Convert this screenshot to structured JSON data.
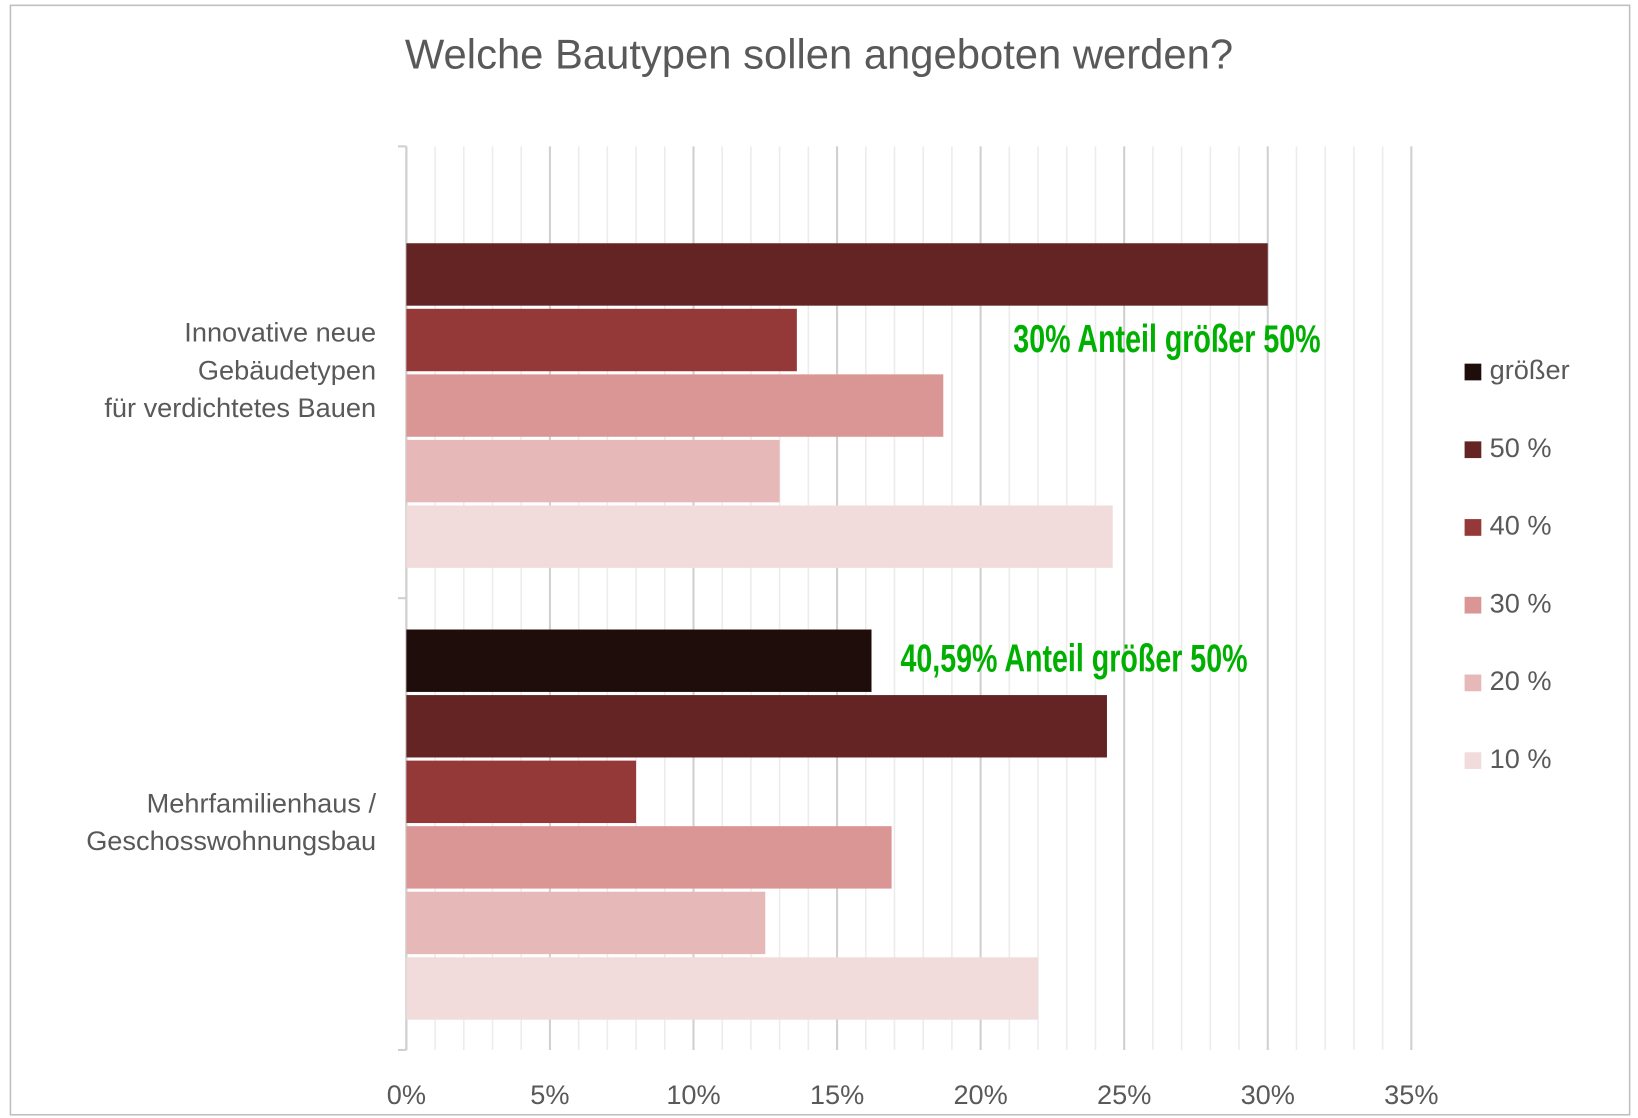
{
  "chart_data": {
    "type": "hbar",
    "title": "Welche Bautypen sollen angeboten werden?",
    "categories": [
      [
        "Innovative neue",
        "Gebäudetypen",
        "für verdichtetes Bauen"
      ],
      [
        "Mehrfamilienhaus /",
        "Geschosswohnungsbau"
      ]
    ],
    "series": [
      {
        "name": "größer",
        "color": "#1f0d0b",
        "values": [
          0,
          16.2
        ]
      },
      {
        "name": "50 %",
        "color": "#642424",
        "values": [
          30,
          24.4
        ]
      },
      {
        "name": "40 %",
        "color": "#953838",
        "values": [
          13.6,
          8
        ]
      },
      {
        "name": "30 %",
        "color": "#d99694",
        "values": [
          18.7,
          16.9
        ]
      },
      {
        "name": "20 %",
        "color": "#e6b9b8",
        "values": [
          13,
          12.5
        ]
      },
      {
        "name": "10 %",
        "color": "#f2dcdb",
        "values": [
          24.6,
          22
        ]
      }
    ],
    "xlim": [
      0,
      35
    ],
    "xticks": [
      {
        "value": 0,
        "label": "0%"
      },
      {
        "value": 5,
        "label": "5%"
      },
      {
        "value": 10,
        "label": "10%"
      },
      {
        "value": 15,
        "label": "15%"
      },
      {
        "value": 20,
        "label": "20%"
      },
      {
        "value": 25,
        "label": "25%"
      },
      {
        "value": 30,
        "label": "30%"
      },
      {
        "value": 35,
        "label": "35%"
      }
    ],
    "grid": true,
    "minor_grid": true,
    "legend": "right",
    "annotations": [
      {
        "text": "30% Anteil größer 50%",
        "color": "#00b000"
      },
      {
        "text": "40,59% Anteil größer 50%",
        "color": "#00b000"
      }
    ]
  }
}
